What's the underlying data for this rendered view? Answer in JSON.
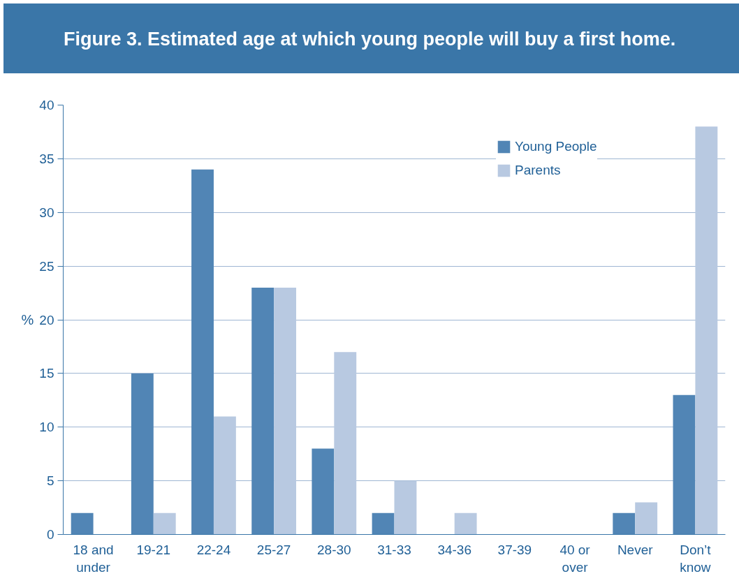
{
  "chart_data": {
    "type": "bar",
    "title": "Figure 3.  Estimated age at which young people will buy a first home.",
    "ylabel": "%",
    "categories": [
      "18 and under",
      "19-21",
      "22-24",
      "25-27",
      "28-30",
      "31-33",
      "34-36",
      "37-39",
      "40 or over",
      "Never",
      "Don’t know"
    ],
    "series": [
      {
        "name": "Young People",
        "color": "#5185b5",
        "values": [
          2,
          15,
          34,
          23,
          8,
          2,
          0,
          0,
          0,
          2,
          13
        ]
      },
      {
        "name": "Parents",
        "color": "#b8c9e1",
        "values": [
          0,
          2,
          11,
          23,
          17,
          5,
          2,
          0,
          0,
          3,
          38
        ]
      }
    ],
    "ylim": [
      0,
      40
    ],
    "yticks": [
      0,
      5,
      10,
      15,
      20,
      25,
      30,
      35,
      40
    ],
    "grid": "y",
    "legend": "top right"
  }
}
